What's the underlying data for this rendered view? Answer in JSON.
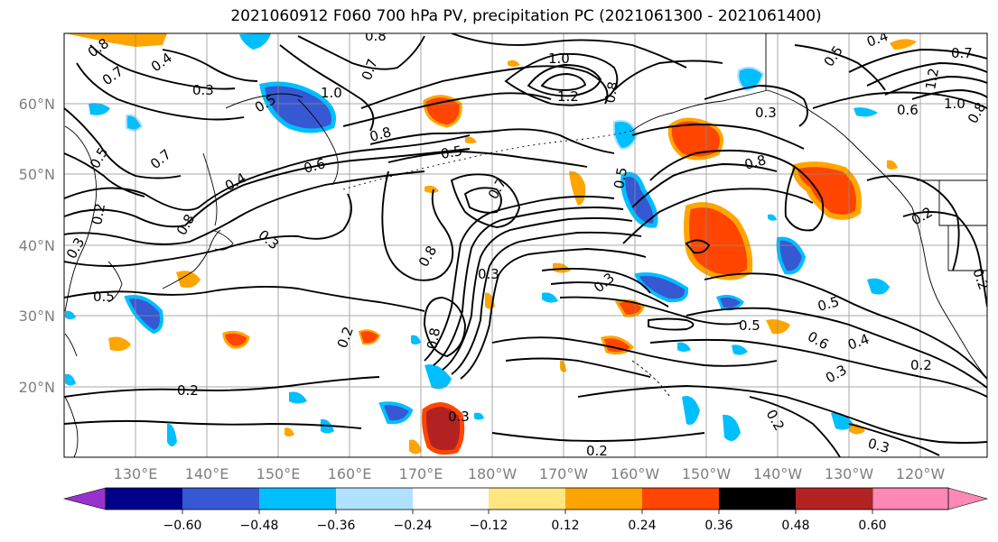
{
  "title": "2021060912 F060 700 hPa PV, precipitation PC (2021061300 - 2021061400)",
  "lat_labels": [
    "60°N",
    "50°N",
    "40°N",
    "30°N",
    "20°N"
  ],
  "lon_labels": [
    "130°E",
    "140°E",
    "150°E",
    "160°E",
    "170°E",
    "180°W",
    "170°W",
    "160°W",
    "150°W",
    "140°W",
    "130°W",
    "120°W"
  ],
  "colorbar": {
    "colors": [
      "#9932cc",
      "#00008b",
      "#3758d3",
      "#00bfff",
      "#b0e2ff",
      "#ffffff",
      "#ffe680",
      "#ffa500",
      "#ff4500",
      "#b22222",
      "#ff88b4"
    ],
    "ticks": [
      "−0.60",
      "−0.48",
      "−0.36",
      "−0.24",
      "−0.12",
      "0.12",
      "0.24",
      "0.36",
      "0.48",
      "0.60"
    ]
  },
  "contour_labels": [
    {
      "text": "0.8"
    },
    {
      "text": "0.7"
    },
    {
      "text": "0.4"
    },
    {
      "text": "0.3"
    },
    {
      "text": "0.5"
    },
    {
      "text": "1.0"
    },
    {
      "text": "0.7"
    },
    {
      "text": "0.8"
    },
    {
      "text": "1.0"
    },
    {
      "text": "1.2"
    },
    {
      "text": "0.8"
    },
    {
      "text": "0.5"
    },
    {
      "text": "0.4"
    },
    {
      "text": "0.7"
    },
    {
      "text": "1.2"
    },
    {
      "text": "1.0"
    },
    {
      "text": "0.8"
    },
    {
      "text": "0.3"
    },
    {
      "text": "0.6"
    },
    {
      "text": "0.5"
    },
    {
      "text": "0.7"
    },
    {
      "text": "0.6"
    },
    {
      "text": "0.5"
    },
    {
      "text": "0.8"
    },
    {
      "text": "0.5"
    },
    {
      "text": "0.8"
    },
    {
      "text": "0.3"
    },
    {
      "text": "0.2"
    },
    {
      "text": "0.3"
    },
    {
      "text": "0.4"
    },
    {
      "text": "0.5"
    },
    {
      "text": "0.8"
    },
    {
      "text": "0.7"
    },
    {
      "text": "0.8"
    },
    {
      "text": "0.3"
    },
    {
      "text": "0.3"
    },
    {
      "text": "0.5"
    },
    {
      "text": "0.5"
    },
    {
      "text": "0.6"
    },
    {
      "text": "0.4"
    },
    {
      "text": "0.3"
    },
    {
      "text": "0.2"
    },
    {
      "text": "0.2"
    },
    {
      "text": "0.2"
    },
    {
      "text": "0.8"
    },
    {
      "text": "0.2"
    },
    {
      "text": "0.3"
    },
    {
      "text": "0.2"
    },
    {
      "text": "0.2"
    },
    {
      "text": "0.3"
    },
    {
      "text": "0.2"
    }
  ]
}
